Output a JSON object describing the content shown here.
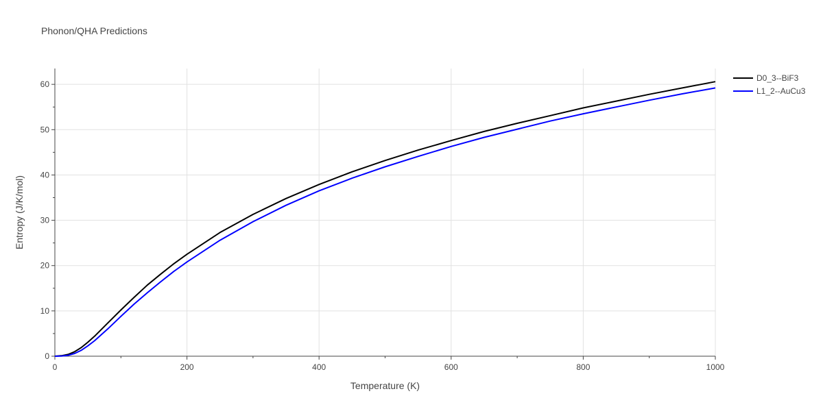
{
  "chart_data": {
    "type": "line",
    "title": "Phonon/QHA Predictions",
    "xlabel": "Temperature (K)",
    "ylabel": "Entropy (J/K/mol)",
    "xlim": [
      0,
      1000
    ],
    "ylim": [
      0,
      63.5
    ],
    "x_ticks": [
      0,
      200,
      400,
      600,
      800,
      1000
    ],
    "y_ticks": [
      0,
      10,
      20,
      30,
      40,
      50,
      60
    ],
    "grid": true,
    "legend_position": "top-right",
    "series": [
      {
        "name": "D0_3--BiF3",
        "color": "#000000",
        "x": [
          0,
          10,
          20,
          30,
          40,
          50,
          60,
          80,
          100,
          120,
          140,
          160,
          180,
          200,
          250,
          300,
          350,
          400,
          450,
          500,
          550,
          600,
          650,
          700,
          750,
          800,
          850,
          900,
          950,
          1000
        ],
        "y": [
          0,
          0.1,
          0.4,
          1.0,
          1.9,
          3.1,
          4.4,
          7.3,
          10.2,
          13.0,
          15.7,
          18.1,
          20.4,
          22.5,
          27.3,
          31.3,
          34.8,
          37.9,
          40.7,
          43.2,
          45.5,
          47.6,
          49.6,
          51.4,
          53.1,
          54.8,
          56.3,
          57.8,
          59.2,
          60.6
        ]
      },
      {
        "name": "L1_2--AuCu3",
        "color": "#0000ff",
        "x": [
          0,
          10,
          20,
          30,
          40,
          50,
          60,
          80,
          100,
          120,
          140,
          160,
          180,
          200,
          250,
          300,
          350,
          400,
          450,
          500,
          550,
          600,
          650,
          700,
          750,
          800,
          850,
          900,
          950,
          1000
        ],
        "y": [
          0,
          0.05,
          0.2,
          0.6,
          1.3,
          2.3,
          3.4,
          6.0,
          8.8,
          11.5,
          14.0,
          16.4,
          18.7,
          20.8,
          25.6,
          29.7,
          33.3,
          36.5,
          39.3,
          41.8,
          44.1,
          46.3,
          48.3,
          50.1,
          51.9,
          53.5,
          55.0,
          56.5,
          57.9,
          59.2
        ]
      }
    ]
  }
}
